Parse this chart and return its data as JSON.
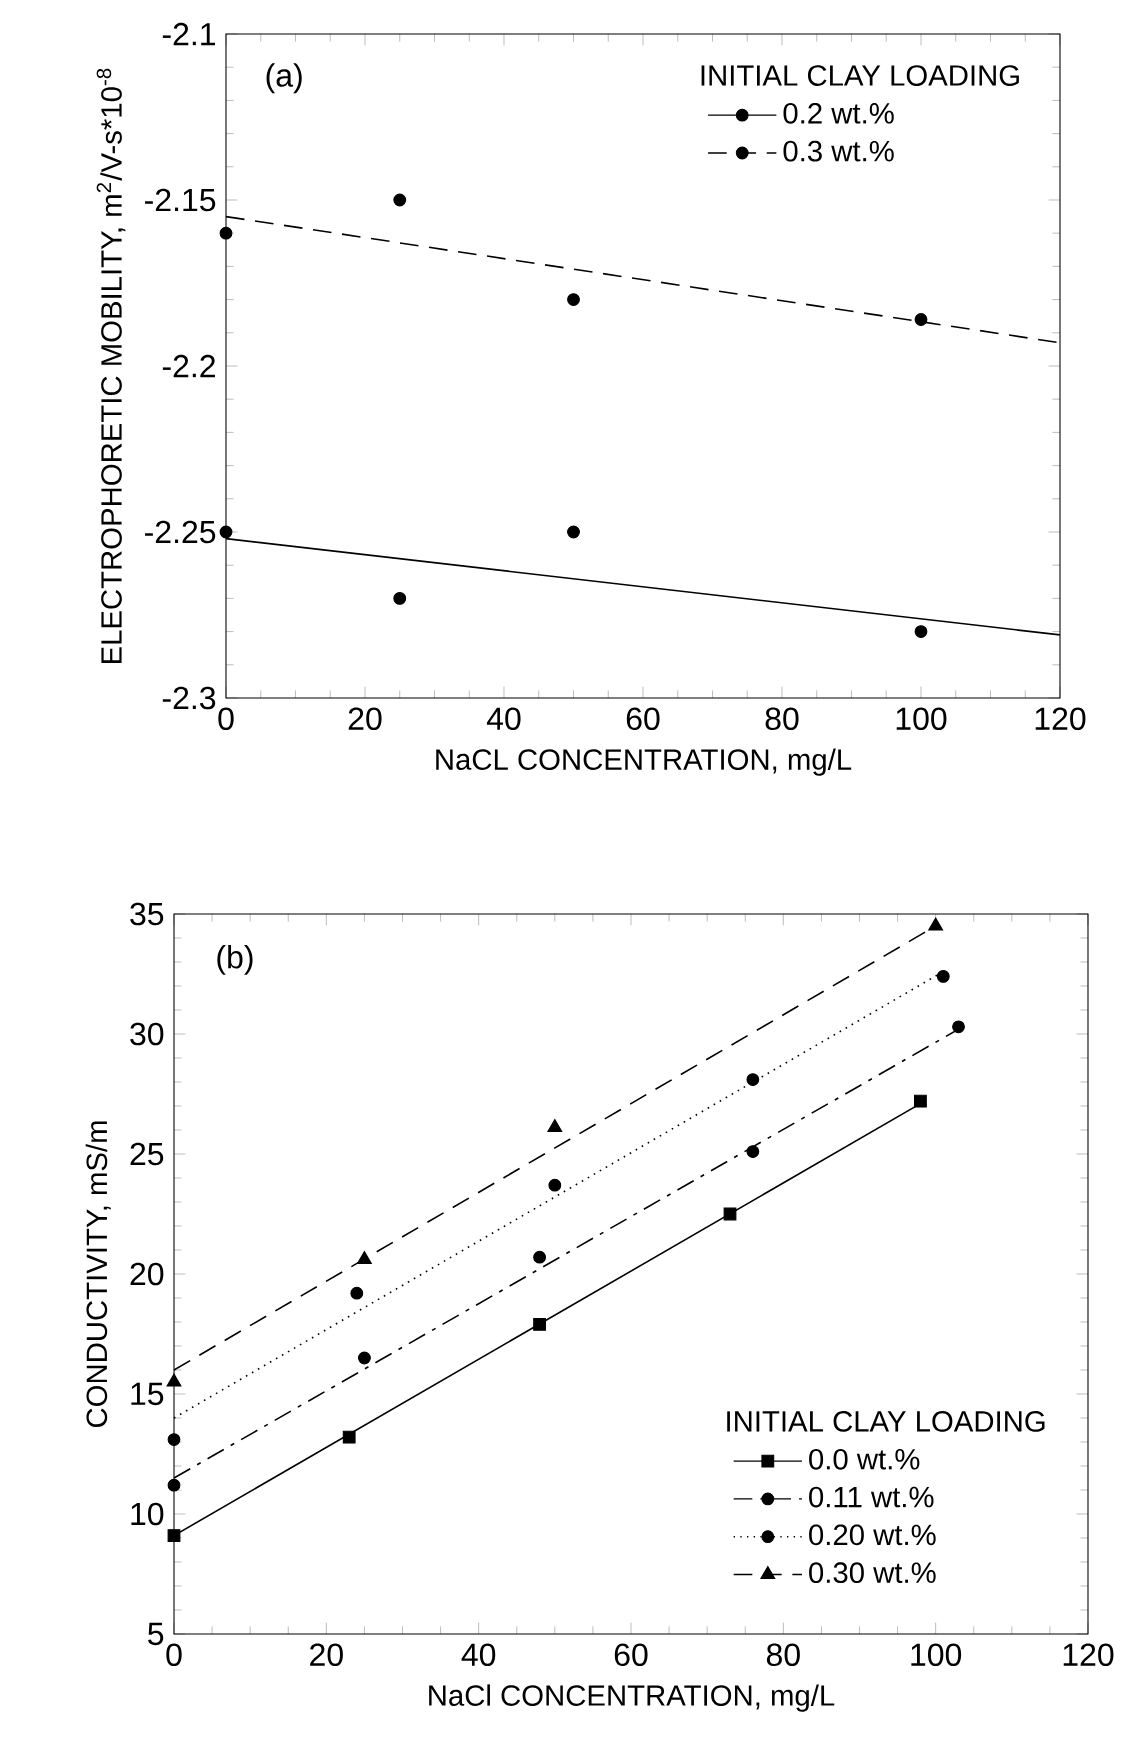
{
  "chart_data": [
    {
      "type": "scatter",
      "xlabel": "NaCL CONCENTRATION, mg/L",
      "ylabel": "ELECTROPHORETIC MOBILITY, m$^{2}$/V-s*10$^{-8}$",
      "legend_title": "INITIAL CLAY LOADING",
      "annotations": [
        "(a)"
      ],
      "xlim": [
        0,
        120
      ],
      "xticks": [
        0,
        20,
        40,
        60,
        80,
        100,
        120
      ],
      "ylim": [
        -2.3,
        -2.1
      ],
      "yticks": [
        -2.3,
        -2.25,
        -2.2,
        -2.15,
        -2.1
      ],
      "legend": "top right",
      "grid": false,
      "series": [
        {
          "name": "0.2 wt.%",
          "marker": "circle",
          "color": "#000000",
          "line_style": "solid",
          "x": [
            0,
            25,
            50,
            100
          ],
          "values": [
            -2.25,
            -2.27,
            -2.25,
            -2.28
          ]
        },
        {
          "name": "0.3 wt.%",
          "marker": "circle",
          "color": "#000000",
          "line_style": "dashed",
          "x": [
            0,
            25,
            50,
            100
          ],
          "values": [
            -2.16,
            -2.15,
            -2.18,
            -2.186
          ]
        },
        {
          "type": "line",
          "color": "#000000",
          "line_style": "solid",
          "marker": "none",
          "x": [
            0,
            120
          ],
          "values": [
            -2.252,
            -2.281
          ]
        },
        {
          "type": "line",
          "color": "#000000",
          "line_style": "dashed",
          "marker": "none",
          "x": [
            0,
            120
          ],
          "values": [
            -2.155,
            -2.193
          ]
        }
      ]
    },
    {
      "type": "scatter",
      "xlabel": "NaCl CONCENTRATION, mg/L",
      "ylabel": "CONDUCTIVITY, mS/m",
      "legend_title": "INITIAL CLAY LOADING",
      "annotations": [
        "(b)"
      ],
      "xlim": [
        0,
        120
      ],
      "xticks": [
        0,
        20,
        40,
        60,
        80,
        100,
        120
      ],
      "ylim": [
        5,
        35
      ],
      "yticks": [
        5,
        10,
        15,
        20,
        25,
        30,
        35
      ],
      "legend": "bottom right",
      "grid": false,
      "series": [
        {
          "name": "0.0 wt.%",
          "marker": "square",
          "color": "#000000",
          "line_style": "solid",
          "x": [
            0,
            23,
            48,
            73,
            98
          ],
          "values": [
            9.1,
            13.2,
            17.9,
            22.5,
            27.2
          ]
        },
        {
          "name": "0.11 wt.%",
          "marker": "circle",
          "color": "#000000",
          "line_style": "dashdot",
          "x": [
            0,
            25,
            48,
            76,
            103
          ],
          "values": [
            11.2,
            16.5,
            20.7,
            25.1,
            30.3
          ]
        },
        {
          "name": "0.20 wt.%",
          "marker": "circle",
          "color": "#000000",
          "line_style": "dotted",
          "x": [
            0,
            24,
            50,
            76,
            101
          ],
          "values": [
            13.1,
            19.2,
            23.7,
            28.1,
            32.4
          ]
        },
        {
          "name": "0.30 wt.%",
          "marker": "triangle",
          "color": "#000000",
          "line_style": "dashed",
          "x": [
            0,
            25,
            50,
            100
          ],
          "values": [
            15.5,
            20.6,
            26.1,
            34.5
          ]
        },
        {
          "type": "line",
          "color": "#000000",
          "line_style": "solid",
          "marker": "none",
          "x": [
            0,
            98
          ],
          "values": [
            9.1,
            27.1
          ]
        },
        {
          "type": "line",
          "color": "#000000",
          "line_style": "dashdot",
          "marker": "none",
          "x": [
            0,
            103
          ],
          "values": [
            11.5,
            30.2
          ]
        },
        {
          "type": "line",
          "color": "#000000",
          "line_style": "dotted",
          "marker": "none",
          "x": [
            0,
            101
          ],
          "values": [
            14.0,
            32.6
          ]
        },
        {
          "type": "line",
          "color": "#000000",
          "line_style": "dashed",
          "marker": "none",
          "x": [
            0,
            100
          ],
          "values": [
            16.0,
            34.5
          ]
        }
      ]
    }
  ]
}
